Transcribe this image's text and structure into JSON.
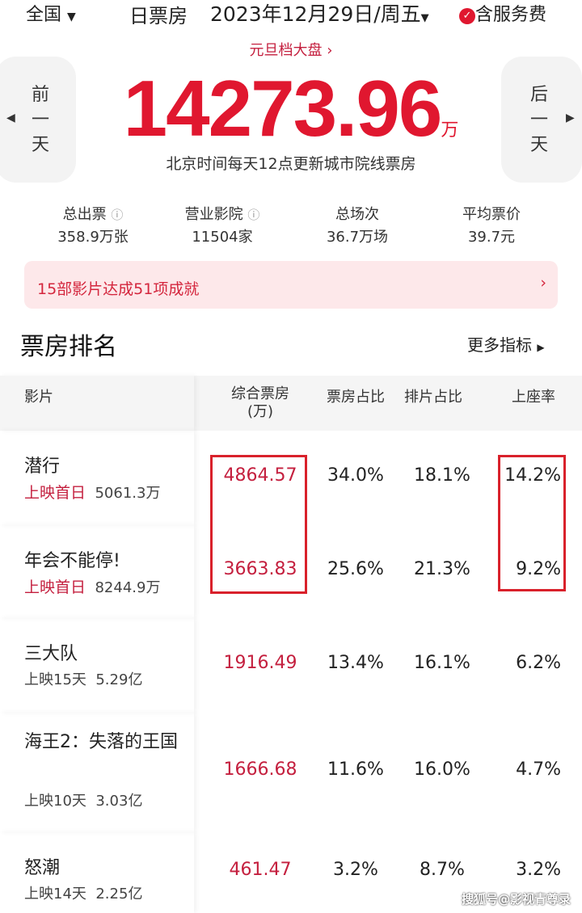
{
  "top": {
    "region": "全国",
    "title": "日票房",
    "date": "2023年12月29日/周五",
    "service_fee": "含服务费"
  },
  "hero": {
    "tag": "元旦档大盘",
    "total": "14273.96",
    "unit": "万",
    "note": "北京时间每天12点更新城市院线票房",
    "prev": [
      "前",
      "一",
      "天"
    ],
    "next": [
      "后",
      "一",
      "天"
    ]
  },
  "stats": [
    {
      "label": "总出票",
      "value": "358.9万张"
    },
    {
      "label": "营业影院",
      "value": "11504家"
    },
    {
      "label": "总场次",
      "value": "36.7万场"
    },
    {
      "label": "平均票价",
      "value": "39.7元"
    }
  ],
  "banner": "15部影片达成51项成就",
  "section": {
    "title": "票房排名",
    "more": "更多指标"
  },
  "table": {
    "headers": [
      "影片",
      "综合票房\n(万)",
      "票房占比",
      "排片占比",
      "上座率"
    ],
    "rows": [
      {
        "name": "潜行",
        "tag": "上映首日",
        "sum": "5061.3万",
        "box": "4864.57",
        "share": "34.0%",
        "screen": "18.1%",
        "seat": "14.2%"
      },
      {
        "name": "年会不能停!",
        "tag": "上映首日",
        "sum": "8244.9万",
        "box": "3663.83",
        "share": "25.6%",
        "screen": "21.3%",
        "seat": "9.2%"
      },
      {
        "name": "三大队",
        "tag": "上映15天",
        "sum": "5.29亿",
        "box": "1916.49",
        "share": "13.4%",
        "screen": "16.1%",
        "seat": "6.2%"
      },
      {
        "name": "海王2：失落的王国",
        "tag": "上映10天",
        "sum": "3.03亿",
        "box": "1666.68",
        "share": "11.6%",
        "screen": "16.0%",
        "seat": "4.7%"
      },
      {
        "name": "怒潮",
        "tag": "上映14天",
        "sum": "2.25亿",
        "box": "461.47",
        "share": "3.2%",
        "screen": "8.7%",
        "seat": "3.2%"
      }
    ]
  },
  "watermark": "搜狐号@影视青尊录",
  "colors": {
    "accent": "#e0172f",
    "highlight_box": "#d9212b"
  }
}
